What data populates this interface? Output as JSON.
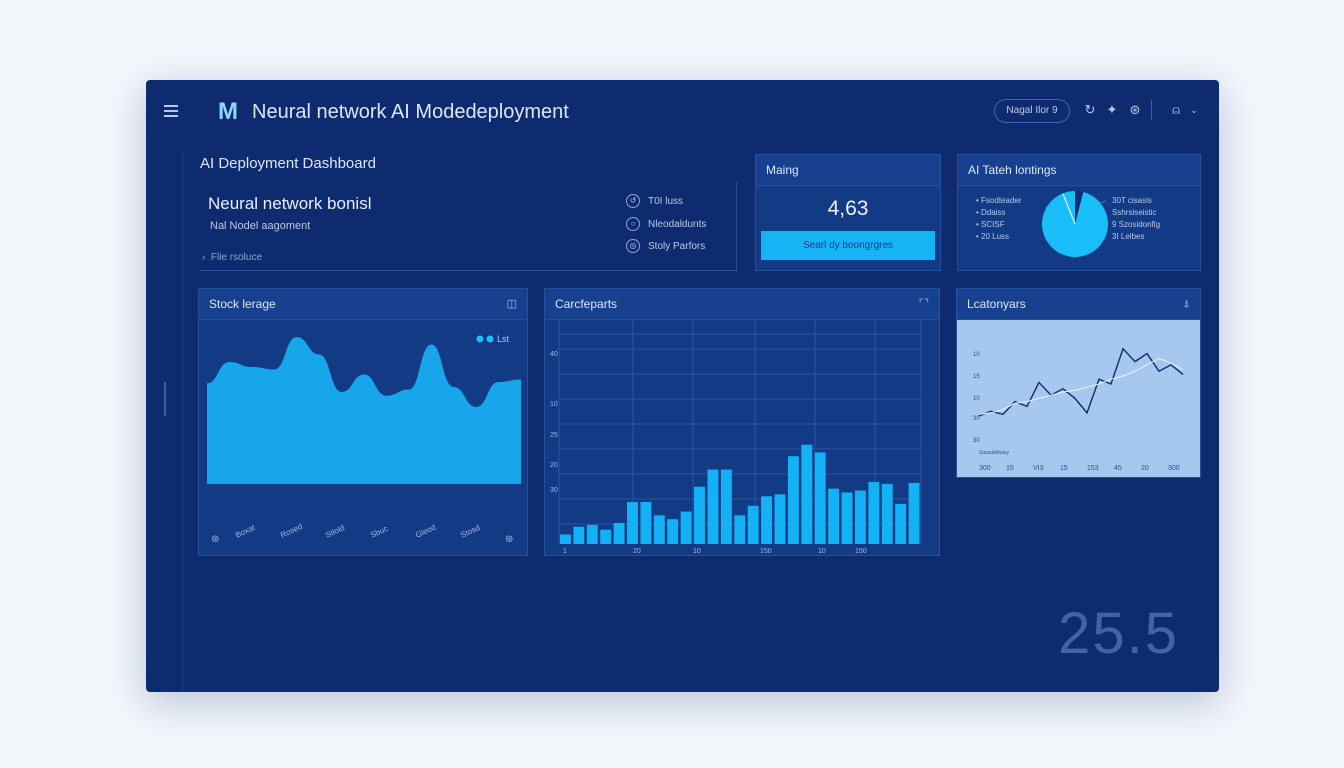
{
  "header": {
    "logo": "M",
    "title": "Neural network AI Modedeployment",
    "pill": "Nagal Ilor 9",
    "icons": [
      "refresh-icon",
      "bird-icon",
      "settings-icon",
      "user-icon",
      "chevron-down-icon"
    ]
  },
  "dashboard": {
    "title": "AI Deployment Dashboard",
    "headline": "Neural network bonisl",
    "subline": "Nal Nodel aagoment",
    "file_row": "Flie rsoluce",
    "options": [
      "T0I luss",
      "Nleodaldunts",
      "Stoly Parfors"
    ]
  },
  "metric_card": {
    "title": "Maing",
    "value": "4,63",
    "button": "Searl dy boongrgres"
  },
  "pie_card": {
    "title": "AI Tateh lontings",
    "legend_left": [
      "Fsodteader",
      "Ddaiss",
      "SCISF",
      "20 Luss"
    ],
    "legend_right": [
      "30T cisasis",
      "Sshrsiseistic",
      "9 Szosidonfig",
      "3I Lelbes"
    ]
  },
  "area_card": {
    "title": "Stock lerage",
    "legend": "Lst",
    "xlabels": [
      "Boxat",
      "Rosed",
      "Stlold",
      "Sbuc",
      "Gleod",
      "Stosd"
    ]
  },
  "bar_card": {
    "title": "Carcfeparts",
    "ylabels": [
      "40",
      "10",
      "25",
      "20",
      "30"
    ],
    "xlabels": [
      "1",
      "20",
      "10",
      "150",
      "10",
      "150"
    ]
  },
  "line_card": {
    "title": "Lcatonyars",
    "ylabels": [
      "10",
      "15",
      "10",
      "30",
      "30"
    ],
    "legend": "Sasaubtlnasy",
    "xlabels": [
      "300",
      "15",
      "VI3",
      "15",
      "153",
      "45",
      "20",
      "300"
    ]
  },
  "big_number": "25.5",
  "chart_data": [
    {
      "type": "area",
      "title": "Stock lerage",
      "series": [
        {
          "name": "Lst",
          "values": [
            0.55,
            0.72,
            0.68,
            0.66,
            0.92,
            0.78,
            0.48,
            0.62,
            0.45,
            0.5,
            0.86,
            0.52,
            0.36,
            0.56,
            0.58
          ]
        }
      ],
      "ylim": [
        0,
        1
      ]
    },
    {
      "type": "bar",
      "title": "Carcfeparts",
      "values": [
        10,
        18,
        20,
        15,
        22,
        44,
        44,
        30,
        26,
        34,
        60,
        78,
        78,
        30,
        40,
        50,
        52,
        92,
        104,
        96,
        58,
        54,
        56,
        65,
        63,
        42,
        64
      ],
      "ylim": [
        0,
        220
      ]
    },
    {
      "type": "line",
      "title": "Lcatonyars",
      "series": [
        {
          "values": [
            40,
            46,
            42,
            58,
            52,
            82,
            66,
            74,
            62,
            44,
            86,
            80,
            124,
            108,
            118,
            96,
            104,
            92
          ]
        },
        {
          "values": [
            42,
            44,
            48,
            56,
            58,
            62,
            66,
            70,
            72,
            76,
            80,
            86,
            90,
            96,
            104,
            112,
            106,
            98
          ]
        }
      ],
      "ylim": [
        0,
        160
      ]
    },
    {
      "type": "pie",
      "title": "AI Tateh lontings",
      "values": [
        96,
        4
      ]
    }
  ]
}
